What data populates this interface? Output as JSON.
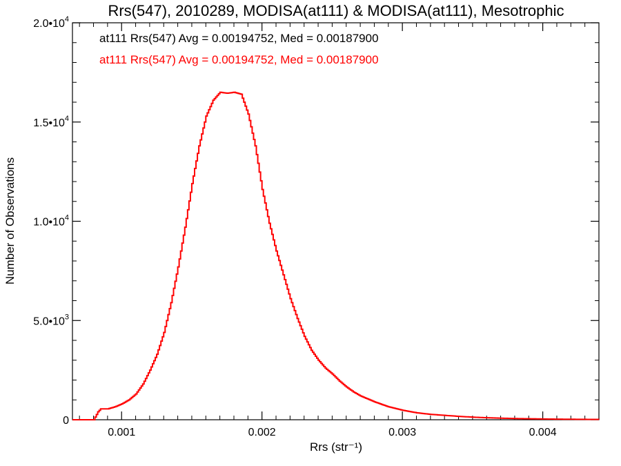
{
  "chart_data": {
    "type": "line",
    "step": true,
    "title": "Rrs(547), 2010289, MODISA(at111) & MODISA(at111), Mesotrophic",
    "xlabel": "Rrs (str⁻¹)",
    "ylabel": "Number of Observations",
    "xlim": [
      0.00065,
      0.0044
    ],
    "ylim": [
      0,
      20000
    ],
    "grid": false,
    "x_ticks": [
      {
        "value": 0.001,
        "label": "0.001"
      },
      {
        "value": 0.002,
        "label": "0.002"
      },
      {
        "value": 0.003,
        "label": "0.003"
      },
      {
        "value": 0.004,
        "label": "0.004"
      }
    ],
    "y_ticks": [
      {
        "value": 0,
        "mant": "0",
        "exp": ""
      },
      {
        "value": 5000,
        "mant": "5.0•10",
        "exp": "3"
      },
      {
        "value": 10000,
        "mant": "1.0•10",
        "exp": "4"
      },
      {
        "value": 15000,
        "mant": "1.5•10",
        "exp": "4"
      },
      {
        "value": 20000,
        "mant": "2.0•10",
        "exp": "4"
      }
    ],
    "annotations": [
      {
        "text": "at111 Rrs(547) Avg = 0.00194752, Med = 0.00187900",
        "color": "#000000"
      },
      {
        "text": "at111 Rrs(547) Avg = 0.00194752, Med = 0.00187900",
        "color": "#ff0000"
      }
    ],
    "series": [
      {
        "color": "#ff0000",
        "x": [
          0.00065,
          0.0008,
          0.00083,
          0.00085,
          0.0009,
          0.00095,
          0.001,
          0.00105,
          0.0011,
          0.00115,
          0.0012,
          0.00125,
          0.0013,
          0.00135,
          0.0014,
          0.00145,
          0.0015,
          0.00155,
          0.0016,
          0.00165,
          0.0017,
          0.00175,
          0.0018,
          0.00185,
          0.0019,
          0.00195,
          0.002,
          0.00205,
          0.0021,
          0.00215,
          0.0022,
          0.00225,
          0.0023,
          0.00235,
          0.0024,
          0.00245,
          0.0025,
          0.00255,
          0.0026,
          0.00265,
          0.0027,
          0.0028,
          0.0029,
          0.003,
          0.0031,
          0.0032,
          0.0033,
          0.0034,
          0.0035,
          0.0036,
          0.0037,
          0.0038,
          0.0039,
          0.004,
          0.0041,
          0.0042,
          0.0043,
          0.0044
        ],
        "y": [
          0,
          0,
          400,
          550,
          550,
          650,
          800,
          1000,
          1300,
          1800,
          2500,
          3300,
          4400,
          5900,
          7700,
          9700,
          11900,
          13800,
          15300,
          16100,
          16500,
          16450,
          16500,
          16400,
          15400,
          13800,
          11600,
          9900,
          8500,
          7300,
          6100,
          5100,
          4200,
          3500,
          3000,
          2600,
          2300,
          1950,
          1650,
          1400,
          1200,
          900,
          650,
          480,
          350,
          270,
          220,
          170,
          130,
          100,
          80,
          60,
          50,
          40,
          30,
          25,
          20,
          15
        ]
      }
    ]
  }
}
